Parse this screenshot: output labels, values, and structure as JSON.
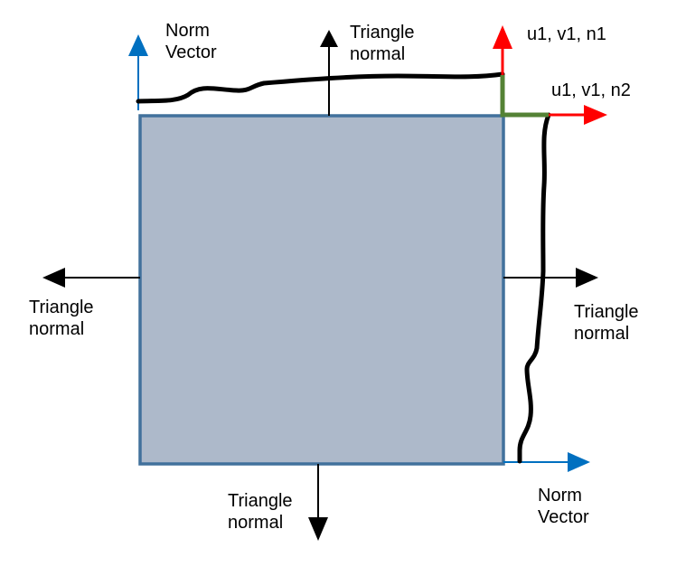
{
  "colors": {
    "square_fill": "#adb9ca",
    "square_border": "#41719c",
    "triangle_normal_arrow": "#000000",
    "norm_vector_arrow": "#0070c0",
    "edge_curve": "#000000",
    "n1_arrow": "#ff0000",
    "n2_arrow": "#ff0000",
    "corner_elbow": "#548235"
  },
  "labels": {
    "norm_vector_top": {
      "line1": "Norm",
      "line2": "Vector"
    },
    "triangle_normal_top": {
      "line1": "Triangle",
      "line2": "normal"
    },
    "triangle_normal_left": {
      "line1": "Triangle",
      "line2": "normal"
    },
    "triangle_normal_right": {
      "line1": "Triangle",
      "line2": "normal"
    },
    "triangle_normal_bottom": {
      "line1": "Triangle",
      "line2": "normal"
    },
    "norm_vector_bottom": {
      "line1": "Norm",
      "line2": "Vector"
    },
    "corner_n1": "u1, v1, n1",
    "corner_n2": "u1, v1, n2"
  }
}
